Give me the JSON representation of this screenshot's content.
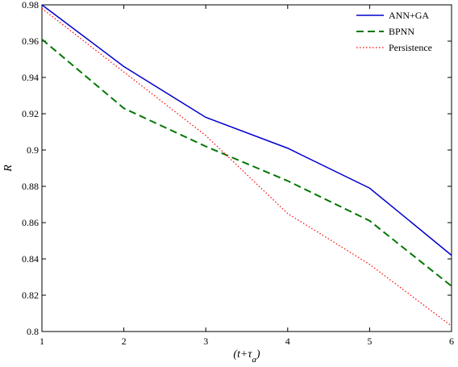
{
  "chart_data": {
    "type": "line",
    "title": "",
    "xlabel": "(t+τ_a)",
    "ylabel": "R",
    "xlim": [
      1,
      6
    ],
    "ylim": [
      0.8,
      0.98
    ],
    "x_ticks": [
      1,
      2,
      3,
      4,
      5,
      6
    ],
    "y_ticks": [
      0.8,
      0.82,
      0.84,
      0.86,
      0.88,
      0.9,
      0.92,
      0.94,
      0.96,
      0.98
    ],
    "x_tick_labels": [
      "1",
      "2",
      "3",
      "4",
      "5",
      "6"
    ],
    "y_tick_labels": [
      "0.8",
      "0.82",
      "0.84",
      "0.86",
      "0.88",
      "0.9",
      "0.92",
      "0.94",
      "0.96",
      "0.98"
    ],
    "grid": false,
    "legend_position": "top-right",
    "x": [
      1,
      2,
      3,
      4,
      5,
      6
    ],
    "series": [
      {
        "name": "ANN+GA",
        "values": [
          0.98,
          0.946,
          0.918,
          0.901,
          0.879,
          0.842
        ],
        "color": "#0000cc",
        "style": "solid"
      },
      {
        "name": "BPNN",
        "values": [
          0.961,
          0.923,
          0.902,
          0.883,
          0.861,
          0.825
        ],
        "color": "#007700",
        "style": "dashed"
      },
      {
        "name": "Persistence",
        "values": [
          0.978,
          0.943,
          0.908,
          0.865,
          0.837,
          0.803
        ],
        "color": "#ff0000",
        "style": "dotted"
      }
    ]
  }
}
